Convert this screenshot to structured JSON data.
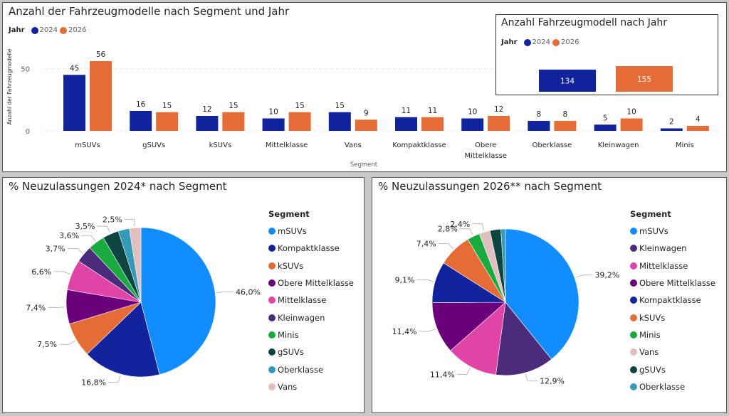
{
  "colors": {
    "y2024": "#12239e",
    "y2026": "#e66c37",
    "segments": {
      "mSUVs": "#118dff",
      "Kompaktklasse": "#12239e",
      "kSUVs": "#e66c37",
      "Obere Mittelklasse": "#6b007b",
      "Mittelklasse": "#e044a7",
      "Kleinwagen": "#4b2b7a",
      "Minis": "#1aab40",
      "gSUVs": "#0f4541",
      "Oberklasse": "#3599b8",
      "Vans": "#dfbfbf"
    }
  },
  "chart_data": [
    {
      "type": "bar",
      "title": "Anzahl der Fahrzeugmodelle nach Segment und Jahr",
      "legend_title": "Jahr",
      "legend_position": "top-left",
      "xlabel": "Segment",
      "ylabel": "Anzahl der Fahrzeugmodelle",
      "ylim": [
        0,
        60
      ],
      "yticks": [
        "0",
        "50"
      ],
      "categories": [
        "mSUVs",
        "gSUVs",
        "kSUVs",
        "Mittelklasse",
        "Vans",
        "Kompaktklasse",
        "Obere Mittelklasse",
        "Oberklasse",
        "Kleinwagen",
        "Minis"
      ],
      "category_lines": [
        [
          "mSUVs"
        ],
        [
          "gSUVs"
        ],
        [
          "kSUVs"
        ],
        [
          "Mittelklasse"
        ],
        [
          "Vans"
        ],
        [
          "Kompaktklasse"
        ],
        [
          "Obere",
          "Mittelklasse"
        ],
        [
          "Oberklasse"
        ],
        [
          "Kleinwagen"
        ],
        [
          "Minis"
        ]
      ],
      "series": [
        {
          "name": "2024",
          "values": [
            45,
            16,
            12,
            10,
            15,
            11,
            10,
            8,
            5,
            2
          ]
        },
        {
          "name": "2026",
          "values": [
            56,
            15,
            15,
            15,
            9,
            11,
            12,
            8,
            10,
            4
          ]
        }
      ],
      "grid": true
    },
    {
      "type": "bar",
      "title": "Anzahl Fahrzeugmodell nach Jahr",
      "legend_title": "Jahr",
      "categories": [
        "2024",
        "2026"
      ],
      "values": [
        134,
        155
      ]
    },
    {
      "type": "pie",
      "title": "% Neuzulassungen 2024* nach Segment",
      "legend_title": "Segment",
      "legend_position": "right",
      "slices": [
        {
          "label": "mSUVs",
          "value": 46.0,
          "text": "46,0%"
        },
        {
          "label": "Kompaktklasse",
          "value": 16.8,
          "text": "16,8%"
        },
        {
          "label": "kSUVs",
          "value": 7.5,
          "text": "7,5%"
        },
        {
          "label": "Obere Mittelklasse",
          "value": 7.4,
          "text": "7,4%"
        },
        {
          "label": "Mittelklasse",
          "value": 6.6,
          "text": "6,6%"
        },
        {
          "label": "Kleinwagen",
          "value": 3.7,
          "text": "3,7%"
        },
        {
          "label": "Minis",
          "value": 3.6,
          "text": "3,6%"
        },
        {
          "label": "gSUVs",
          "value": 3.5,
          "text": "3,5%"
        },
        {
          "label": "Oberklasse",
          "value": 2.4,
          "text": ""
        },
        {
          "label": "Vans",
          "value": 2.5,
          "text": "2,5%"
        }
      ]
    },
    {
      "type": "pie",
      "title": "% Neuzulassungen 2026** nach Segment",
      "legend_title": "Segment",
      "legend_position": "right",
      "slices": [
        {
          "label": "mSUVs",
          "value": 39.2,
          "text": "39,2%"
        },
        {
          "label": "Kleinwagen",
          "value": 12.9,
          "text": "12,9%"
        },
        {
          "label": "Mittelklasse",
          "value": 11.4,
          "text": "11,4%"
        },
        {
          "label": "Obere Mittelklasse",
          "value": 11.4,
          "text": "11,4%"
        },
        {
          "label": "Kompaktklasse",
          "value": 9.1,
          "text": "9,1%"
        },
        {
          "label": "kSUVs",
          "value": 7.4,
          "text": "7,4%"
        },
        {
          "label": "Minis",
          "value": 2.8,
          "text": "2,8%"
        },
        {
          "label": "Vans",
          "value": 2.4,
          "text": "2,4%"
        },
        {
          "label": "gSUVs",
          "value": 2.4,
          "text": ""
        },
        {
          "label": "Oberklasse",
          "value": 1.0,
          "text": ""
        }
      ]
    }
  ]
}
